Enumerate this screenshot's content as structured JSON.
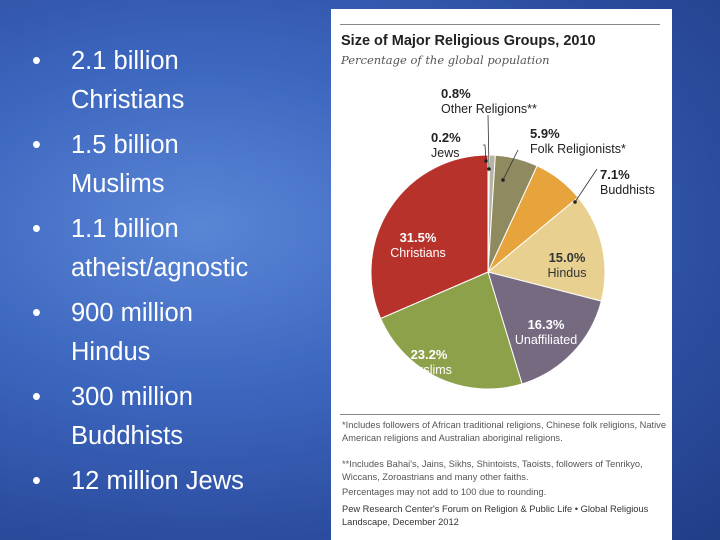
{
  "slide": {
    "bullets": [
      [
        "2.1 billion",
        "Christians"
      ],
      [
        "1.5 billion",
        "Muslims"
      ],
      [
        "1.1 billion",
        "atheist/agnostic"
      ],
      [
        "900 million",
        "Hindus"
      ],
      [
        "300 million",
        "Buddhists"
      ],
      [
        "12 million Jews"
      ]
    ]
  },
  "chart_data": {
    "type": "pie",
    "title": "Size of Major Religious Groups, 2010",
    "subtitle": "Percentage of the global population",
    "slices": [
      {
        "label": "Jews",
        "value": 0.2,
        "value_label": "0.2%",
        "color": "#6e6e6e"
      },
      {
        "label": "Other Religions**",
        "value": 0.8,
        "value_label": "0.8%",
        "color": "#b9b3a3"
      },
      {
        "label": "Folk Religionists*",
        "value": 5.9,
        "value_label": "5.9%",
        "color": "#8f8a60"
      },
      {
        "label": "Buddhists",
        "value": 7.1,
        "value_label": "7.1%",
        "color": "#e8a43c"
      },
      {
        "label": "Hindus",
        "value": 15.0,
        "value_label": "15.0%",
        "color": "#e8d190"
      },
      {
        "label": "Unaffiliated",
        "value": 16.3,
        "value_label": "16.3%",
        "color": "#756a80"
      },
      {
        "label": "Muslims",
        "value": 23.2,
        "value_label": "23.2%",
        "color": "#8da04a"
      },
      {
        "label": "Christians",
        "value": 31.5,
        "value_label": "31.5%",
        "color": "#b8322c"
      }
    ],
    "notes": [
      "*Includes followers of African traditional religions, Chinese folk religions, Native American religions and Australian aboriginal religions.",
      "**Includes Bahai's, Jains, Sikhs, Shintoists, Taoists, followers of Tenrikyo, Wiccans, Zoroastrians and many other faiths.",
      "Percentages may not add to 100 due to rounding."
    ],
    "source": "Pew Research Center's Forum on Religion & Public Life • Global Religious Landscape, December 2012"
  }
}
